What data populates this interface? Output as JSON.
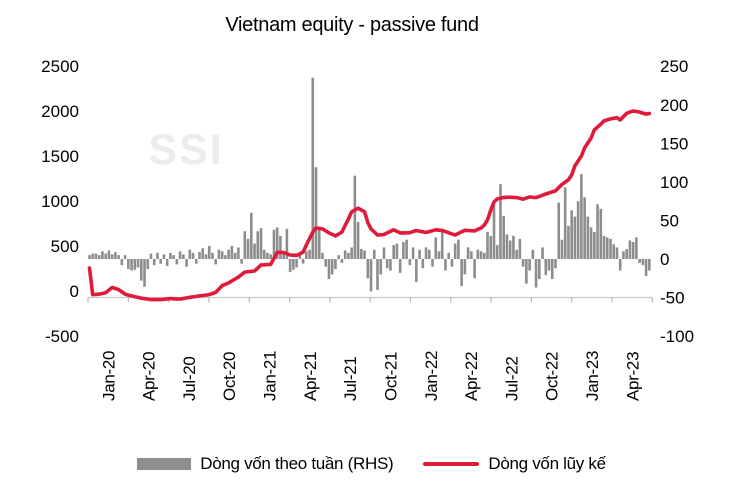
{
  "title": "Vietnam equity - passive fund",
  "watermark": "SSI",
  "colors": {
    "bar": "#8d8d8d",
    "line": "#e01a3a",
    "watermark": "#ececec",
    "axis_line": "#c9c9c9",
    "tick": "#b9b9b9",
    "text": "#000000"
  },
  "legend": [
    {
      "label": "Dòng vốn theo tuần (RHS)",
      "swatch": "bar"
    },
    {
      "label": "Dòng vốn lũy kế",
      "swatch": "line"
    }
  ],
  "chart_data": {
    "type": "bar",
    "title": "Vietnam equity - passive fund",
    "x_tick_labels": [
      "Jan-20",
      "Apr-20",
      "Jul-20",
      "Oct-20",
      "Jan-21",
      "Apr-21",
      "Jul-21",
      "Oct-21",
      "Jan-22",
      "Apr-22",
      "Jul-22",
      "Oct-22",
      "Jan-23",
      "Apr-23"
    ],
    "left_axis": {
      "ticks": [
        2500,
        2000,
        1500,
        1000,
        500,
        0,
        -500
      ],
      "range": [
        -500,
        2500
      ]
    },
    "right_axis": {
      "ticks": [
        250,
        200,
        150,
        100,
        50,
        0,
        -50,
        -100
      ],
      "range": [
        -100,
        250
      ]
    },
    "weeks_total": 174,
    "grid": "x-axis line only, labels low",
    "legend_position": "bottom",
    "series": [
      {
        "name": "Dòng vốn theo tuần (RHS)",
        "type": "bar",
        "axis": "right",
        "weekly_values": [
          5,
          7,
          7,
          5,
          10,
          7,
          11,
          6,
          9,
          5,
          -8,
          5,
          -13,
          -15,
          -14,
          -11,
          -28,
          -36,
          -13,
          7,
          -8,
          8,
          -6,
          6,
          -9,
          8,
          5,
          -7,
          10,
          6,
          -10,
          12,
          8,
          -6,
          9,
          14,
          6,
          17,
          8,
          -7,
          12,
          10,
          5,
          12,
          17,
          8,
          15,
          -6,
          36,
          26,
          60,
          20,
          36,
          40,
          12,
          8,
          6,
          38,
          41,
          30,
          10,
          39,
          -17,
          -14,
          -11,
          8,
          -6,
          10,
          12,
          235,
          119,
          39,
          8,
          -10,
          -26,
          -20,
          -13,
          5,
          -5,
          11,
          8,
          15,
          108,
          48,
          13,
          11,
          -25,
          -42,
          12,
          -40,
          -20,
          15,
          -12,
          -15,
          18,
          20,
          -18,
          22,
          25,
          -8,
          15,
          -30,
          12,
          -12,
          15,
          12,
          -10,
          28,
          10,
          39,
          -15,
          8,
          -10,
          20,
          25,
          -35,
          -20,
          15,
          10,
          -25,
          12,
          10,
          8,
          35,
          30,
          71,
          18,
          97,
          56,
          32,
          24,
          30,
          12,
          26,
          -10,
          -32,
          -15,
          12,
          -37,
          -26,
          15,
          -21,
          -15,
          -26,
          -12,
          73,
          25,
          93,
          43,
          63,
          55,
          75,
          110,
          80,
          55,
          41,
          35,
          71,
          65,
          30,
          28,
          26,
          19,
          15,
          -15,
          10,
          13,
          24,
          22,
          28,
          -5,
          -8,
          -22,
          -15
        ]
      },
      {
        "name": "Dòng vốn lũy kế",
        "type": "line",
        "axis": "left",
        "anchor_points": [
          [
            0,
            255
          ],
          [
            1,
            -40
          ],
          [
            3,
            -35
          ],
          [
            5,
            -20
          ],
          [
            7,
            40
          ],
          [
            9,
            15
          ],
          [
            11,
            -35
          ],
          [
            13,
            -55
          ],
          [
            16,
            -80
          ],
          [
            19,
            -95
          ],
          [
            22,
            -95
          ],
          [
            25,
            -85
          ],
          [
            28,
            -90
          ],
          [
            31,
            -70
          ],
          [
            34,
            -55
          ],
          [
            37,
            -40
          ],
          [
            39,
            -15
          ],
          [
            41,
            60
          ],
          [
            43,
            90
          ],
          [
            46,
            155
          ],
          [
            48,
            210
          ],
          [
            51,
            222
          ],
          [
            53,
            290
          ],
          [
            56,
            295
          ],
          [
            58,
            430
          ],
          [
            60,
            428
          ],
          [
            62,
            400
          ],
          [
            64,
            395
          ],
          [
            66,
            432
          ],
          [
            67,
            510
          ],
          [
            69,
            655
          ],
          [
            70,
            700
          ],
          [
            72,
            690
          ],
          [
            74,
            645
          ],
          [
            76,
            612
          ],
          [
            78,
            655
          ],
          [
            80,
            800
          ],
          [
            81,
            880
          ],
          [
            83,
            920
          ],
          [
            85,
            880
          ],
          [
            86,
            760
          ],
          [
            87,
            690
          ],
          [
            89,
            622
          ],
          [
            91,
            628
          ],
          [
            94,
            680
          ],
          [
            96,
            645
          ],
          [
            99,
            648
          ],
          [
            101,
            672
          ],
          [
            104,
            650
          ],
          [
            107,
            680
          ],
          [
            109,
            672
          ],
          [
            113,
            622
          ],
          [
            116,
            675
          ],
          [
            119,
            668
          ],
          [
            121,
            700
          ],
          [
            122,
            732
          ],
          [
            123,
            790
          ],
          [
            124,
            900
          ],
          [
            125,
            990
          ],
          [
            126,
            1022
          ],
          [
            128,
            1040
          ],
          [
            130,
            1042
          ],
          [
            132,
            1038
          ],
          [
            134,
            1020
          ],
          [
            136,
            1045
          ],
          [
            138,
            1038
          ],
          [
            140,
            1065
          ],
          [
            142,
            1090
          ],
          [
            144,
            1112
          ],
          [
            146,
            1185
          ],
          [
            148,
            1235
          ],
          [
            149,
            1290
          ],
          [
            150,
            1390
          ],
          [
            152,
            1500
          ],
          [
            153,
            1590
          ],
          [
            155,
            1700
          ],
          [
            156,
            1790
          ],
          [
            158,
            1855
          ],
          [
            159,
            1890
          ],
          [
            161,
            1912
          ],
          [
            163,
            1926
          ],
          [
            164,
            1900
          ],
          [
            166,
            1975
          ],
          [
            168,
            2000
          ],
          [
            170,
            1988
          ],
          [
            172,
            1966
          ],
          [
            173,
            1972
          ]
        ]
      }
    ]
  }
}
